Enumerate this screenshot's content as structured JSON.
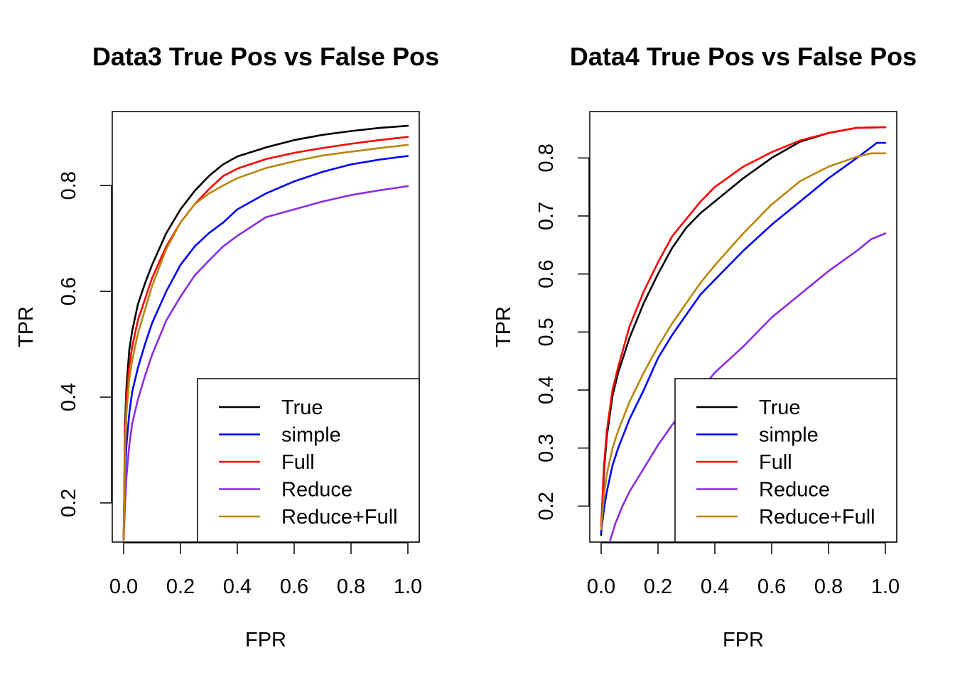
{
  "chart_data": [
    {
      "type": "line",
      "title": "Data3 True Pos vs False Pos",
      "xlabel": "FPR",
      "ylabel": "TPR",
      "xlim": [
        -0.04,
        1.04
      ],
      "ylim": [
        0.126,
        0.94
      ],
      "xticks": [
        "0.0",
        "0.2",
        "0.4",
        "0.6",
        "0.8",
        "1.0"
      ],
      "yticks": [
        "0.2",
        "0.4",
        "0.6",
        "0.8"
      ],
      "legend_position": "bottom-right",
      "series": [
        {
          "name": "True",
          "color": "#000000",
          "x": [
            0,
            0.005,
            0.01,
            0.02,
            0.03,
            0.05,
            0.075,
            0.1,
            0.15,
            0.2,
            0.25,
            0.3,
            0.35,
            0.4,
            0.5,
            0.6,
            0.7,
            0.8,
            0.9,
            1.0
          ],
          "y": [
            0.13,
            0.35,
            0.42,
            0.49,
            0.525,
            0.575,
            0.615,
            0.65,
            0.71,
            0.755,
            0.79,
            0.818,
            0.84,
            0.855,
            0.872,
            0.886,
            0.896,
            0.903,
            0.909,
            0.913
          ]
        },
        {
          "name": "simple",
          "color": "#0000ff",
          "x": [
            0,
            0.005,
            0.01,
            0.02,
            0.03,
            0.05,
            0.075,
            0.1,
            0.15,
            0.2,
            0.25,
            0.3,
            0.35,
            0.4,
            0.5,
            0.6,
            0.7,
            0.8,
            0.9,
            1.0
          ],
          "y": [
            0.13,
            0.26,
            0.31,
            0.37,
            0.41,
            0.455,
            0.5,
            0.54,
            0.6,
            0.65,
            0.685,
            0.71,
            0.73,
            0.755,
            0.785,
            0.808,
            0.826,
            0.84,
            0.849,
            0.856
          ]
        },
        {
          "name": "Full",
          "color": "#ff0000",
          "x": [
            0,
            0.005,
            0.01,
            0.02,
            0.03,
            0.05,
            0.075,
            0.1,
            0.15,
            0.2,
            0.25,
            0.3,
            0.35,
            0.4,
            0.5,
            0.6,
            0.7,
            0.8,
            0.9,
            1.0
          ],
          "y": [
            0.13,
            0.33,
            0.4,
            0.46,
            0.495,
            0.545,
            0.585,
            0.625,
            0.685,
            0.73,
            0.765,
            0.793,
            0.818,
            0.832,
            0.85,
            0.862,
            0.871,
            0.879,
            0.886,
            0.892
          ]
        },
        {
          "name": "Reduce",
          "color": "#8b2be2",
          "x": [
            0,
            0.005,
            0.01,
            0.02,
            0.03,
            0.05,
            0.075,
            0.1,
            0.15,
            0.2,
            0.25,
            0.3,
            0.35,
            0.4,
            0.5,
            0.6,
            0.7,
            0.8,
            0.9,
            1.0
          ],
          "y": [
            0.13,
            0.2,
            0.25,
            0.31,
            0.35,
            0.395,
            0.44,
            0.48,
            0.545,
            0.59,
            0.63,
            0.658,
            0.685,
            0.705,
            0.74,
            0.755,
            0.77,
            0.782,
            0.791,
            0.799
          ]
        },
        {
          "name": "Reduce+Full",
          "color": "#b8860b",
          "x": [
            0,
            0.005,
            0.01,
            0.02,
            0.03,
            0.05,
            0.075,
            0.1,
            0.15,
            0.2,
            0.25,
            0.3,
            0.35,
            0.4,
            0.5,
            0.6,
            0.7,
            0.8,
            0.9,
            1.0
          ],
          "y": [
            0.13,
            0.3,
            0.37,
            0.435,
            0.47,
            0.52,
            0.565,
            0.61,
            0.68,
            0.73,
            0.765,
            0.785,
            0.8,
            0.814,
            0.833,
            0.846,
            0.857,
            0.864,
            0.871,
            0.877
          ]
        }
      ]
    },
    {
      "type": "line",
      "title": "Data4 True Pos vs False Pos",
      "xlabel": "FPR",
      "ylabel": "TPR",
      "xlim": [
        -0.04,
        1.04
      ],
      "ylim": [
        0.138,
        0.88
      ],
      "xticks": [
        "0.0",
        "0.2",
        "0.4",
        "0.6",
        "0.8",
        "1.0"
      ],
      "yticks": [
        "0.2",
        "0.3",
        "0.4",
        "0.5",
        "0.6",
        "0.7",
        "0.8"
      ],
      "legend_position": "bottom-right",
      "series": [
        {
          "name": "True",
          "color": "#000000",
          "x": [
            0,
            0.01,
            0.02,
            0.04,
            0.06,
            0.08,
            0.1,
            0.15,
            0.2,
            0.25,
            0.3,
            0.35,
            0.4,
            0.5,
            0.6,
            0.7,
            0.8,
            0.9,
            1.0
          ],
          "y": [
            0.15,
            0.26,
            0.32,
            0.39,
            0.43,
            0.46,
            0.49,
            0.55,
            0.6,
            0.645,
            0.68,
            0.705,
            0.725,
            0.765,
            0.8,
            0.828,
            0.843,
            0.852,
            0.853
          ]
        },
        {
          "name": "simple",
          "color": "#0000ff",
          "x": [
            0,
            0.01,
            0.02,
            0.04,
            0.06,
            0.08,
            0.1,
            0.15,
            0.2,
            0.25,
            0.3,
            0.35,
            0.4,
            0.5,
            0.6,
            0.7,
            0.8,
            0.9,
            0.97,
            1.0
          ],
          "y": [
            0.155,
            0.195,
            0.225,
            0.27,
            0.3,
            0.325,
            0.35,
            0.4,
            0.455,
            0.495,
            0.53,
            0.565,
            0.59,
            0.64,
            0.685,
            0.725,
            0.765,
            0.8,
            0.826,
            0.826
          ]
        },
        {
          "name": "Full",
          "color": "#ff0000",
          "x": [
            0,
            0.01,
            0.02,
            0.04,
            0.06,
            0.08,
            0.1,
            0.15,
            0.2,
            0.25,
            0.3,
            0.35,
            0.4,
            0.5,
            0.6,
            0.7,
            0.8,
            0.9,
            1.0
          ],
          "y": [
            0.165,
            0.27,
            0.33,
            0.4,
            0.44,
            0.475,
            0.51,
            0.57,
            0.62,
            0.665,
            0.695,
            0.725,
            0.75,
            0.785,
            0.81,
            0.83,
            0.843,
            0.852,
            0.853
          ]
        },
        {
          "name": "Reduce",
          "color": "#8b2be2",
          "x": [
            0.03,
            0.05,
            0.075,
            0.1,
            0.15,
            0.2,
            0.25,
            0.3,
            0.35,
            0.4,
            0.5,
            0.6,
            0.7,
            0.8,
            0.9,
            0.95,
            1.0
          ],
          "y": [
            0.138,
            0.17,
            0.2,
            0.225,
            0.265,
            0.305,
            0.34,
            0.37,
            0.4,
            0.43,
            0.475,
            0.525,
            0.565,
            0.605,
            0.64,
            0.66,
            0.67
          ]
        },
        {
          "name": "Reduce+Full",
          "color": "#b8860b",
          "x": [
            0,
            0.01,
            0.02,
            0.04,
            0.06,
            0.08,
            0.1,
            0.15,
            0.2,
            0.25,
            0.3,
            0.35,
            0.4,
            0.5,
            0.6,
            0.7,
            0.8,
            0.9,
            0.95,
            1.0
          ],
          "y": [
            0.16,
            0.22,
            0.255,
            0.3,
            0.33,
            0.355,
            0.38,
            0.43,
            0.475,
            0.515,
            0.55,
            0.585,
            0.615,
            0.67,
            0.72,
            0.76,
            0.785,
            0.802,
            0.808,
            0.808
          ]
        }
      ]
    }
  ]
}
